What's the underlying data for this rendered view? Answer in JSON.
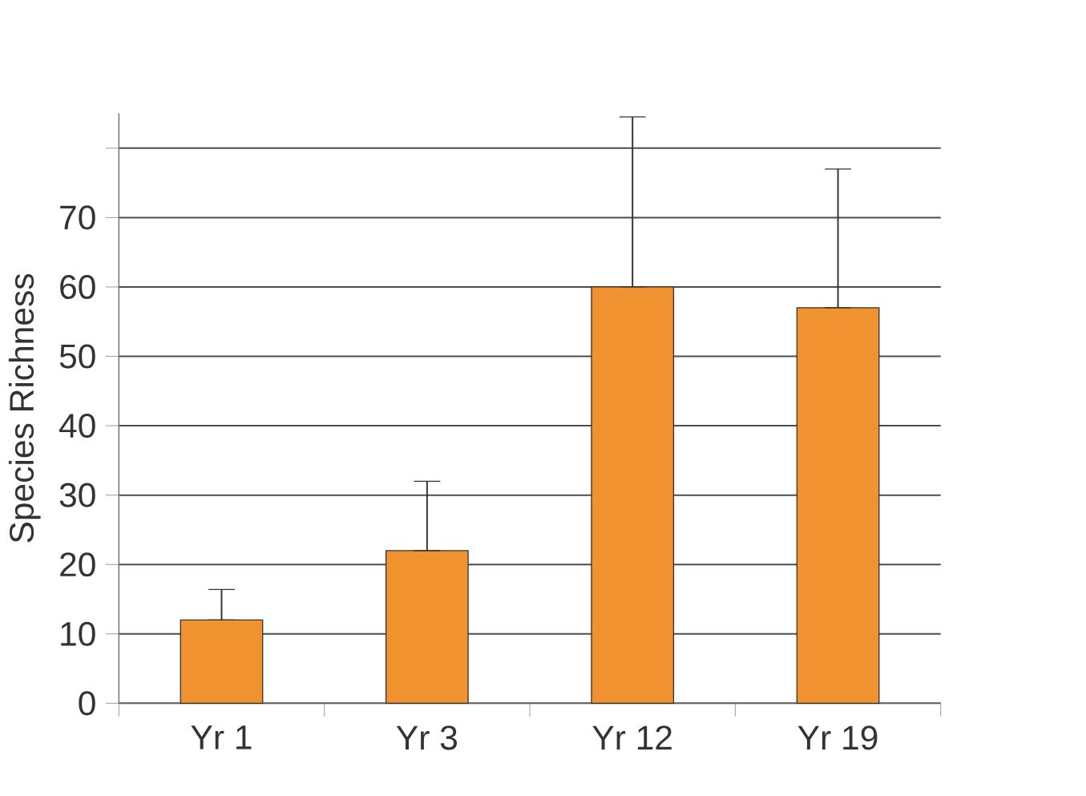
{
  "chart_data": {
    "type": "bar",
    "ylabel": "Species Richness",
    "categories": [
      "Yr 1",
      "Yr 3",
      "Yr 12",
      "Yr 19"
    ],
    "values": [
      12,
      22,
      60,
      57
    ],
    "errors": [
      [
        12,
        16.4
      ],
      [
        22,
        32
      ],
      [
        60,
        84.5
      ],
      [
        57,
        77
      ]
    ],
    "color": "#f0922f",
    "ylim": [
      0,
      85
    ],
    "yticks": [
      0,
      10,
      20,
      30,
      40,
      50,
      60,
      70,
      {
        "value": 80,
        "label": null
      }
    ],
    "grid": "y"
  }
}
